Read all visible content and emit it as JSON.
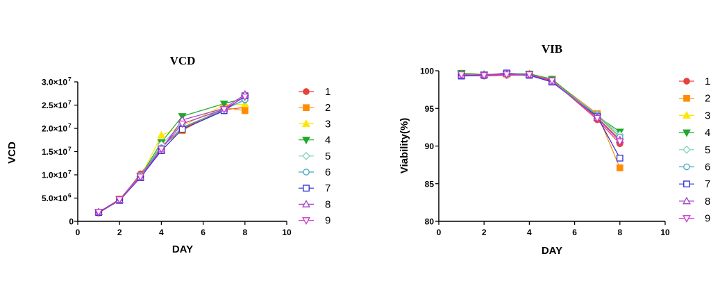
{
  "chart_data": [
    {
      "type": "line",
      "title": "VCD",
      "xlabel": "DAY",
      "ylabel": "VCD",
      "xlim": [
        0,
        10
      ],
      "ylim": [
        0,
        30000000
      ],
      "x_ticks": [
        0,
        2,
        4,
        6,
        8,
        10
      ],
      "x_tick_labels": [
        "0",
        "2",
        "4",
        "6",
        "8",
        "10"
      ],
      "y_ticks": [
        0,
        5000000,
        10000000,
        15000000,
        20000000,
        25000000,
        30000000
      ],
      "y_tick_labels": [
        {
          "mantissa": "0",
          "exp": ""
        },
        {
          "mantissa": "5.0×10",
          "exp": "6"
        },
        {
          "mantissa": "1.0×10",
          "exp": "7"
        },
        {
          "mantissa": "1.5×10",
          "exp": "7"
        },
        {
          "mantissa": "2.0×10",
          "exp": "7"
        },
        {
          "mantissa": "2.5×10",
          "exp": "7"
        },
        {
          "mantissa": "3.0×10",
          "exp": "7"
        }
      ],
      "legend": "right",
      "grid": false,
      "x": [
        1,
        2,
        3,
        4,
        5,
        7,
        8
      ],
      "series": [
        {
          "name": "1",
          "marker": "circle",
          "color": "#e8413c",
          "values": [
            1800000,
            4600000,
            10200000,
            16000000,
            20000000,
            24000000,
            24500000
          ]
        },
        {
          "name": "2",
          "marker": "square",
          "color": "#ff8c00",
          "values": [
            1900000,
            4800000,
            9800000,
            16200000,
            19500000,
            24500000,
            23800000
          ]
        },
        {
          "name": "3",
          "marker": "triangle-up",
          "color": "#ffe600",
          "values": [
            2000000,
            4500000,
            9500000,
            18500000,
            20500000,
            25000000,
            25200000
          ]
        },
        {
          "name": "4",
          "marker": "triangle-down",
          "color": "#1fa82a",
          "values": [
            1900000,
            4700000,
            9700000,
            17000000,
            22600000,
            25300000,
            26500000
          ]
        },
        {
          "name": "5",
          "marker": "diamond-open",
          "color": "#7fd4b0",
          "values": [
            2000000,
            4600000,
            9600000,
            16500000,
            21000000,
            24200000,
            26000000
          ]
        },
        {
          "name": "6",
          "marker": "circle-open",
          "color": "#45a4c4",
          "values": [
            2000000,
            4700000,
            9900000,
            15800000,
            20200000,
            24000000,
            26200000
          ]
        },
        {
          "name": "7",
          "marker": "square-open",
          "color": "#2a2ad0",
          "values": [
            1900000,
            4500000,
            9400000,
            15200000,
            19800000,
            23800000,
            27000000
          ]
        },
        {
          "name": "8",
          "marker": "triangle-up-open",
          "color": "#a040c8",
          "values": [
            2000000,
            4600000,
            9500000,
            15500000,
            21800000,
            24300000,
            27300000
          ]
        },
        {
          "name": "9",
          "marker": "triangle-down-open",
          "color": "#cc33cc",
          "values": [
            2000000,
            4700000,
            9600000,
            15600000,
            21000000,
            24100000,
            26800000
          ]
        }
      ]
    },
    {
      "type": "line",
      "title": "VIB",
      "xlabel": "DAY",
      "ylabel": "Viability(%)",
      "xlim": [
        0,
        10
      ],
      "ylim": [
        80,
        100
      ],
      "x_ticks": [
        0,
        2,
        4,
        6,
        8,
        10
      ],
      "x_tick_labels": [
        "0",
        "2",
        "4",
        "6",
        "8",
        "10"
      ],
      "y_ticks": [
        80,
        85,
        90,
        95,
        100
      ],
      "y_tick_labels": [
        "80",
        "85",
        "90",
        "95",
        "100"
      ],
      "legend": "right",
      "grid": false,
      "x": [
        1,
        2,
        3,
        4,
        5,
        7,
        8
      ],
      "series": [
        {
          "name": "1",
          "marker": "circle",
          "color": "#e8413c",
          "values": [
            99.4,
            99.3,
            99.4,
            99.4,
            98.7,
            93.5,
            90.3
          ]
        },
        {
          "name": "2",
          "marker": "square",
          "color": "#ff8c00",
          "values": [
            99.5,
            99.4,
            99.5,
            99.5,
            98.8,
            94.3,
            87.1
          ]
        },
        {
          "name": "3",
          "marker": "triangle-up",
          "color": "#ffe600",
          "values": [
            99.6,
            99.5,
            99.5,
            99.6,
            98.9,
            94.0,
            91.0
          ]
        },
        {
          "name": "4",
          "marker": "triangle-down",
          "color": "#1fa82a",
          "values": [
            99.7,
            99.5,
            99.6,
            99.6,
            98.9,
            94.0,
            91.9
          ]
        },
        {
          "name": "5",
          "marker": "diamond-open",
          "color": "#7fd4b0",
          "values": [
            99.5,
            99.4,
            99.6,
            99.5,
            98.6,
            94.2,
            91.5
          ]
        },
        {
          "name": "6",
          "marker": "circle-open",
          "color": "#45a4c4",
          "values": [
            99.4,
            99.4,
            99.5,
            99.4,
            98.6,
            94.1,
            91.2
          ]
        },
        {
          "name": "7",
          "marker": "square-open",
          "color": "#2a2ad0",
          "values": [
            99.3,
            99.4,
            99.7,
            99.4,
            98.5,
            93.9,
            88.4
          ]
        },
        {
          "name": "8",
          "marker": "triangle-up-open",
          "color": "#a040c8",
          "values": [
            99.4,
            99.5,
            99.6,
            99.5,
            98.6,
            93.8,
            90.8
          ]
        },
        {
          "name": "9",
          "marker": "triangle-down-open",
          "color": "#cc33cc",
          "values": [
            99.5,
            99.4,
            99.5,
            99.5,
            98.7,
            93.7,
            90.6
          ]
        }
      ]
    }
  ]
}
